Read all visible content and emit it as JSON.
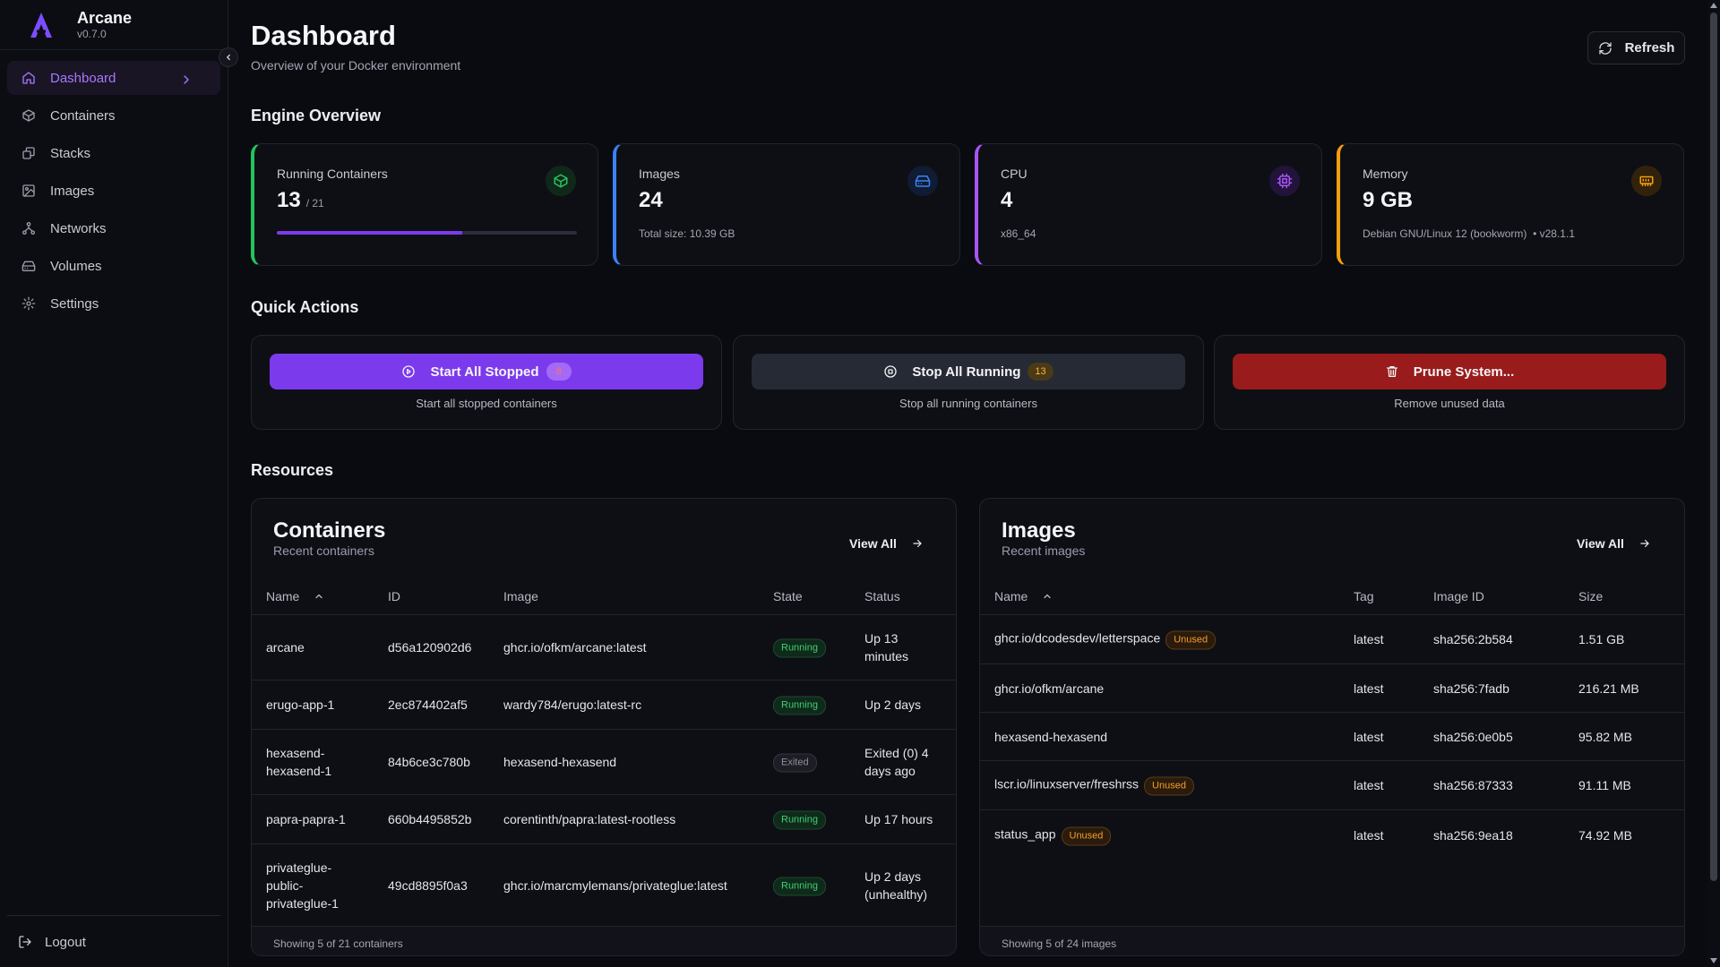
{
  "brand": {
    "name": "Arcane",
    "version": "v0.7.0"
  },
  "sidebar": {
    "items": [
      {
        "label": "Dashboard",
        "icon": "home-icon"
      },
      {
        "label": "Containers",
        "icon": "box-icon"
      },
      {
        "label": "Stacks",
        "icon": "layers-icon"
      },
      {
        "label": "Images",
        "icon": "image-icon"
      },
      {
        "label": "Networks",
        "icon": "network-icon"
      },
      {
        "label": "Volumes",
        "icon": "hard-drive-icon"
      },
      {
        "label": "Settings",
        "icon": "gear-icon"
      }
    ],
    "logout": "Logout"
  },
  "header": {
    "title": "Dashboard",
    "subtitle": "Overview of your Docker environment",
    "refresh": "Refresh"
  },
  "engine": {
    "title": "Engine Overview",
    "running": {
      "label": "Running Containers",
      "value": "13",
      "total": "/ 21",
      "progress": 0.619,
      "color": "#22c55e"
    },
    "images": {
      "label": "Images",
      "value": "24",
      "note": "Total size: 10.39 GB",
      "color": "#3b82f6"
    },
    "cpu": {
      "label": "CPU",
      "value": "4",
      "note": "x86_64",
      "color": "#a855f7"
    },
    "memory": {
      "label": "Memory",
      "value": "9 GB",
      "note": "Debian GNU/Linux 12 (bookworm)",
      "note2": "• v28.1.1",
      "color": "#f59e0b"
    }
  },
  "quick_actions": {
    "title": "Quick Actions",
    "start": {
      "label": "Start All Stopped",
      "badge": "8",
      "desc": "Start all stopped containers"
    },
    "stop": {
      "label": "Stop All Running",
      "badge": "13",
      "desc": "Stop all running containers"
    },
    "prune": {
      "label": "Prune System...",
      "desc": "Remove unused data"
    }
  },
  "resources": {
    "title": "Resources",
    "containers": {
      "title": "Containers",
      "subtitle": "Recent containers",
      "view_all": "View All",
      "columns": [
        "Name",
        "ID",
        "Image",
        "State",
        "Status"
      ],
      "rows": [
        {
          "name": "arcane",
          "id": "d56a120902d6",
          "image": "ghcr.io/ofkm/arcane:latest",
          "state": "Running",
          "status": "Up 13 minutes"
        },
        {
          "name": "erugo-app-1",
          "id": "2ec874402af5",
          "image": "wardy784/erugo:latest-rc",
          "state": "Running",
          "status": "Up 2 days"
        },
        {
          "name": "hexasend-hexasend-1",
          "id": "84b6ce3c780b",
          "image": "hexasend-hexasend",
          "state": "Exited",
          "status": "Exited (0) 4 days ago"
        },
        {
          "name": "papra-papra-1",
          "id": "660b4495852b",
          "image": "corentinth/papra:latest-rootless",
          "state": "Running",
          "status": "Up 17 hours"
        },
        {
          "name": "privateglue-public-privateglue-1",
          "id": "49cd8895f0a3",
          "image": "ghcr.io/marcmylemans/privateglue:latest",
          "state": "Running",
          "status": "Up 2 days (unhealthy)"
        }
      ],
      "footer": "Showing 5 of 21 containers"
    },
    "images": {
      "title": "Images",
      "subtitle": "Recent images",
      "view_all": "View All",
      "columns": [
        "Name",
        "Tag",
        "Image ID",
        "Size"
      ],
      "unused_label": "Unused",
      "rows": [
        {
          "name": "ghcr.io/dcodesdev/letterspace",
          "unused": true,
          "tag": "latest",
          "id": "sha256:2b584",
          "size": "1.51 GB"
        },
        {
          "name": "ghcr.io/ofkm/arcane",
          "unused": false,
          "tag": "latest",
          "id": "sha256:7fadb",
          "size": "216.21 MB"
        },
        {
          "name": "hexasend-hexasend",
          "unused": false,
          "tag": "latest",
          "id": "sha256:0e0b5",
          "size": "95.82 MB"
        },
        {
          "name": "lscr.io/linuxserver/freshrss",
          "unused": true,
          "tag": "latest",
          "id": "sha256:87333",
          "size": "91.11 MB"
        },
        {
          "name": "status_app",
          "unused": true,
          "tag": "latest",
          "id": "sha256:9ea18",
          "size": "74.92 MB"
        }
      ],
      "footer": "Showing 5 of 24 images"
    }
  }
}
